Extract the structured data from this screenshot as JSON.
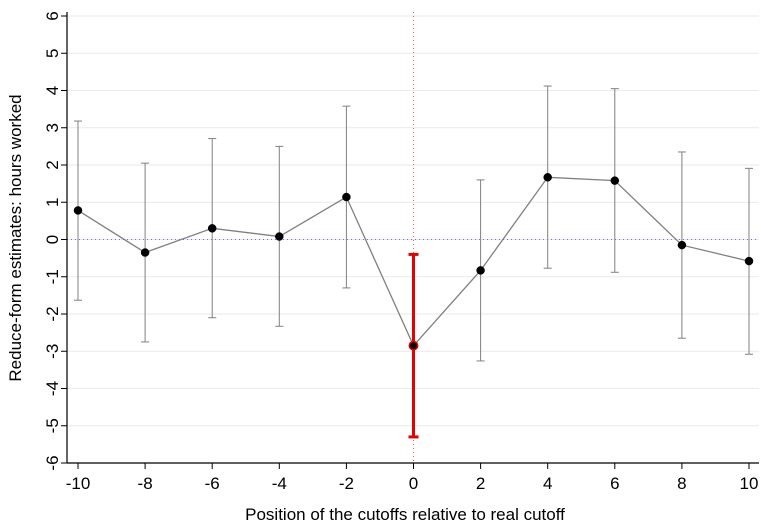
{
  "chart_data": {
    "type": "scatter",
    "title": "",
    "xlabel": "Position of the cutoffs relative to real cutoff",
    "ylabel": "Reduce-form estimates: hours worked",
    "xlim": [
      -10,
      10
    ],
    "ylim": [
      -6,
      6
    ],
    "x_ticks": [
      "-10",
      "-8",
      "-6",
      "-4",
      "-2",
      "0",
      "2",
      "4",
      "6",
      "8",
      "10"
    ],
    "y_ticks": [
      "-6",
      "-5",
      "-4",
      "-3",
      "-2",
      "-1",
      "0",
      "1",
      "2",
      "3",
      "4",
      "5",
      "6"
    ],
    "grid": "horizontal",
    "reference_lines": {
      "x": 0,
      "y": 0
    },
    "series": [
      {
        "x": [
          -10,
          -8,
          -6,
          -4,
          -2,
          0,
          2,
          4,
          6,
          8,
          10
        ],
        "y": [
          0.78,
          -0.35,
          0.3,
          0.08,
          1.14,
          -2.85,
          -0.83,
          1.67,
          1.58,
          -0.15,
          -0.58
        ],
        "ci_low": [
          -1.63,
          -2.75,
          -2.1,
          -2.33,
          -1.3,
          -5.3,
          -3.26,
          -0.77,
          -0.88,
          -2.65,
          -3.08
        ],
        "ci_high": [
          3.18,
          2.05,
          2.71,
          2.5,
          3.58,
          -0.4,
          1.6,
          4.12,
          4.05,
          2.35,
          1.91
        ],
        "highlight_index": 5
      }
    ],
    "colors": {
      "line": "#808080",
      "errorbar": "#808080",
      "marker": "#000000",
      "highlight": "#e60000",
      "grid": "#eaeaea",
      "zero_line": "#6a6aff",
      "cutoff_line": "#e06060"
    }
  }
}
